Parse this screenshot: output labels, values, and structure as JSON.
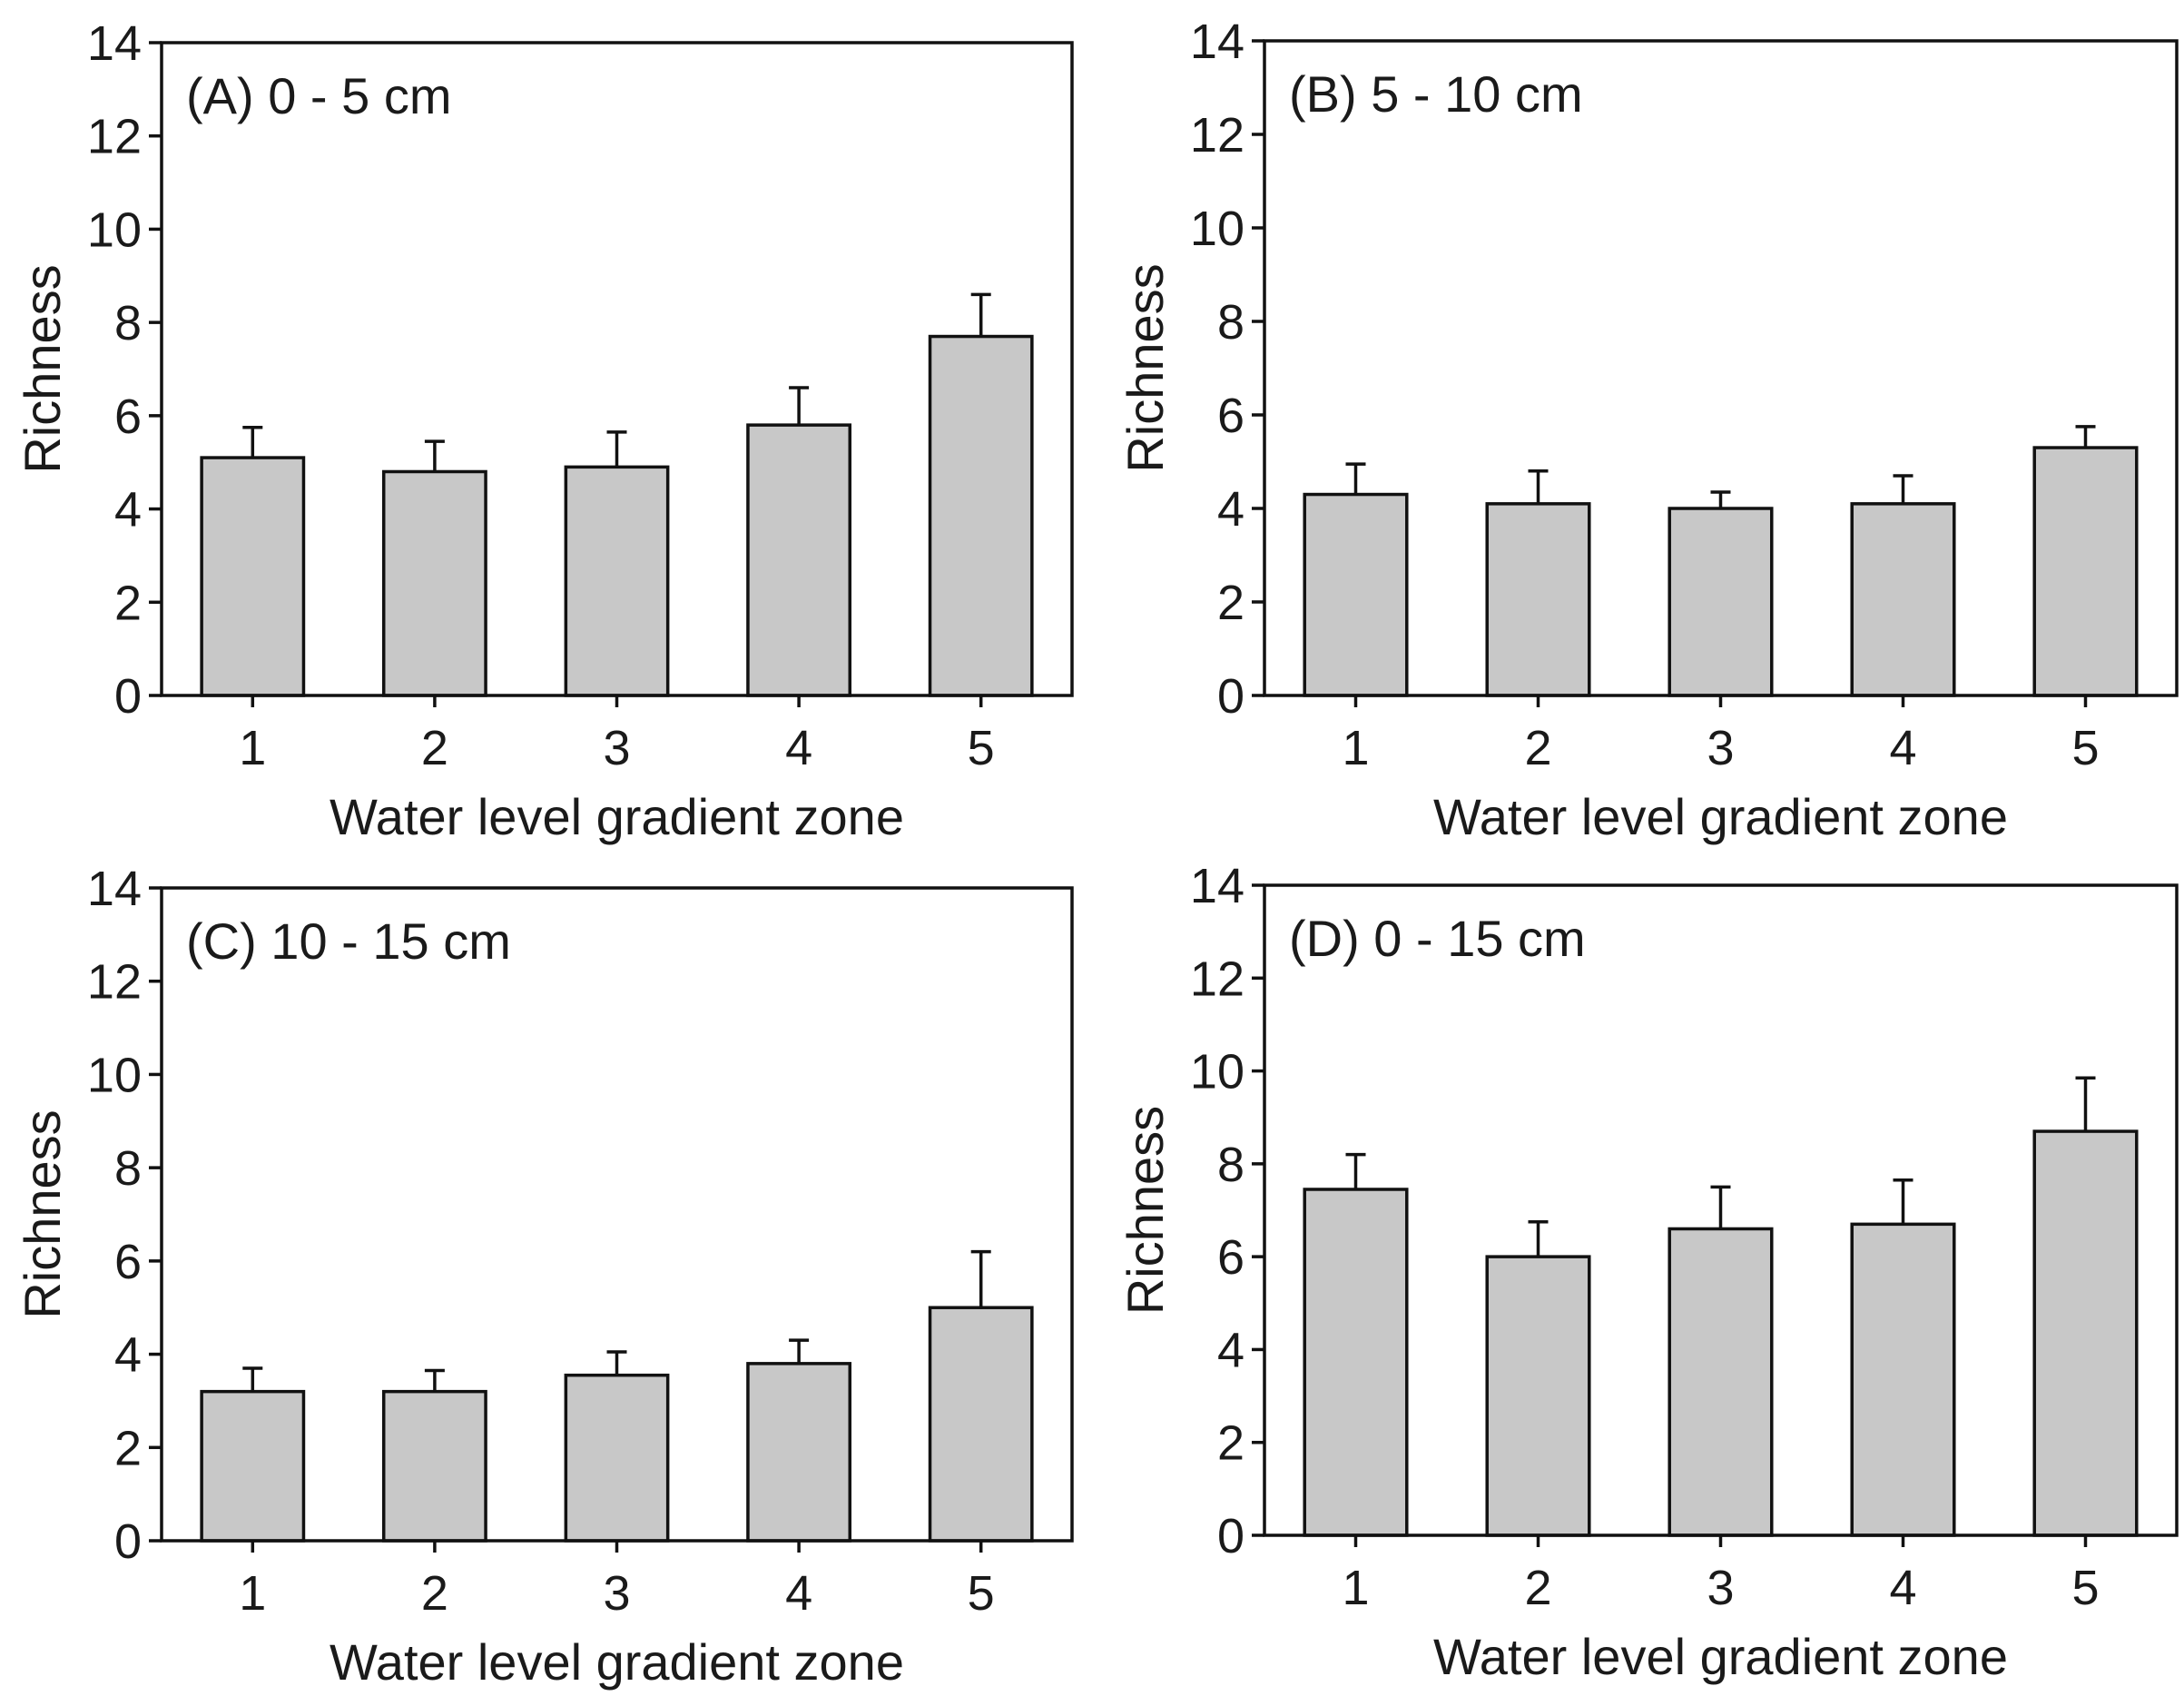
{
  "chart_data": [
    {
      "type": "bar",
      "title": "(A) 0 - 5 cm",
      "xlabel": "Water level gradient zone",
      "ylabel": "Richness",
      "categories": [
        "1",
        "2",
        "3",
        "4",
        "5"
      ],
      "values": [
        5.1,
        4.8,
        4.9,
        5.8,
        7.7
      ],
      "errors": [
        0.65,
        0.65,
        0.75,
        0.8,
        0.9
      ],
      "ylim": [
        0,
        14
      ],
      "yticks": [
        "0",
        "2",
        "4",
        "6",
        "8",
        "10",
        "12",
        "14"
      ],
      "grid": false
    },
    {
      "type": "bar",
      "title": "(B) 5 - 10 cm",
      "xlabel": "Water level gradient zone",
      "ylabel": "Richness",
      "categories": [
        "1",
        "2",
        "3",
        "4",
        "5"
      ],
      "values": [
        4.3,
        4.1,
        4.0,
        4.1,
        5.3
      ],
      "errors": [
        0.65,
        0.7,
        0.35,
        0.6,
        0.45
      ],
      "ylim": [
        0,
        14
      ],
      "yticks": [
        "0",
        "2",
        "4",
        "6",
        "8",
        "10",
        "12",
        "14"
      ],
      "grid": false
    },
    {
      "type": "bar",
      "title": "(C) 10 - 15 cm",
      "xlabel": "Water level gradient zone",
      "ylabel": "Richness",
      "categories": [
        "1",
        "2",
        "3",
        "4",
        "5"
      ],
      "values": [
        3.2,
        3.2,
        3.55,
        3.8,
        5.0
      ],
      "errors": [
        0.5,
        0.45,
        0.5,
        0.5,
        1.2
      ],
      "ylim": [
        0,
        14
      ],
      "yticks": [
        "0",
        "2",
        "4",
        "6",
        "8",
        "10",
        "12",
        "14"
      ],
      "grid": false
    },
    {
      "type": "bar",
      "title": "(D) 0 - 15 cm",
      "xlabel": "Water level gradient zone",
      "ylabel": "Richness",
      "categories": [
        "1",
        "2",
        "3",
        "4",
        "5"
      ],
      "values": [
        7.45,
        6.0,
        6.6,
        6.7,
        8.7
      ],
      "errors": [
        0.75,
        0.75,
        0.9,
        0.95,
        1.15
      ],
      "ylim": [
        0,
        14
      ],
      "yticks": [
        "0",
        "2",
        "4",
        "6",
        "8",
        "10",
        "12",
        "14"
      ],
      "grid": false
    }
  ]
}
